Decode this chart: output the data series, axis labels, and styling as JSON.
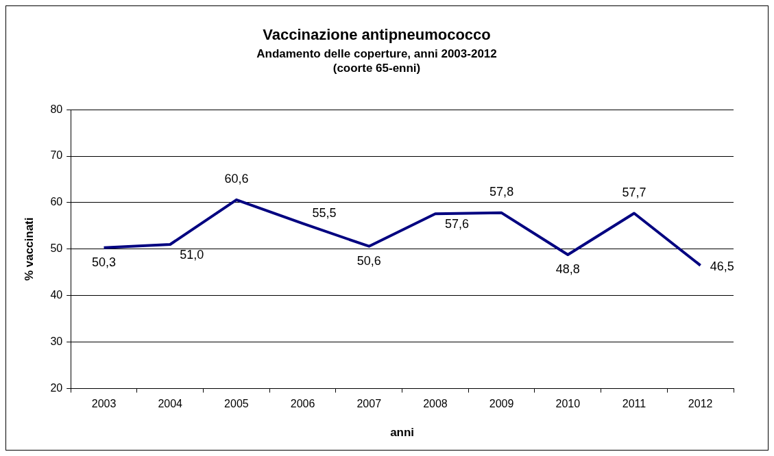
{
  "chart_data": {
    "type": "line",
    "title": "Vaccinazione antipneumococco",
    "subtitle": "Andamento delle coperture, anni 2003-2012",
    "annotations": [
      "(coorte 65-enni)"
    ],
    "xlabel": "anni",
    "ylabel": "% vaccinati",
    "categories": [
      "2003",
      "2004",
      "2005",
      "2006",
      "2007",
      "2008",
      "2009",
      "2010",
      "2011",
      "2012"
    ],
    "series": [
      {
        "color": "#000080",
        "values": [
          50.3,
          51.0,
          60.6,
          55.5,
          50.6,
          57.6,
          57.8,
          48.8,
          57.7,
          46.5
        ],
        "value_labels": [
          "50,3",
          "51,0",
          "60,6",
          "55,5",
          "50,6",
          "57,6",
          "57,8",
          "48,8",
          "57,7",
          "46,5"
        ]
      }
    ],
    "ylim": [
      20,
      80
    ],
    "yticks": [
      20,
      30,
      40,
      50,
      60,
      70,
      80
    ],
    "grid": "y",
    "legend": false,
    "marker": "none",
    "line_style": "solid"
  }
}
